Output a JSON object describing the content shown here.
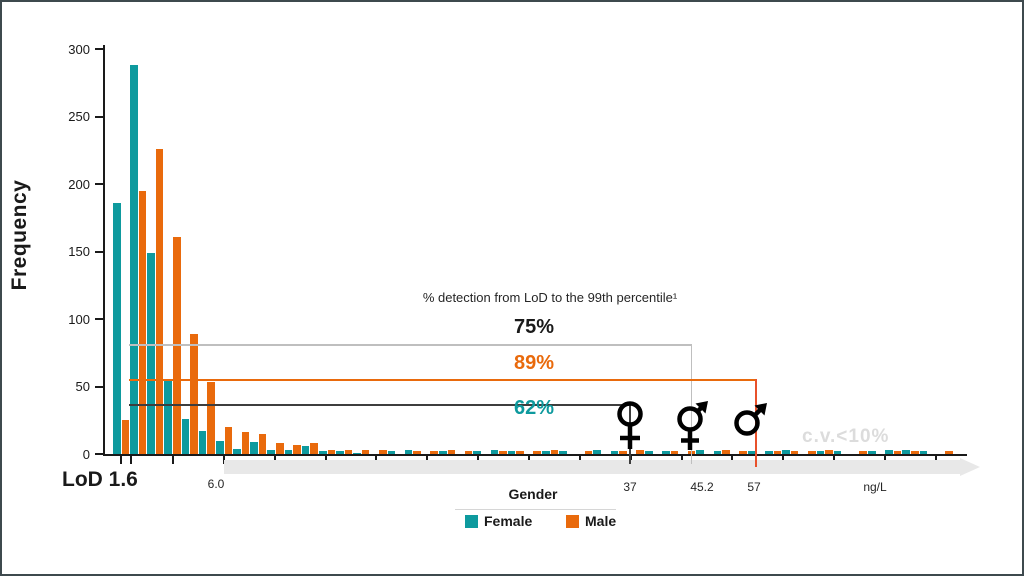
{
  "colors": {
    "female": "#0e9a9e",
    "male": "#e96a0c",
    "line_75": "#bfbfbf",
    "line_62": "#3d3d3d",
    "line_57_vertical": "#e8512b",
    "cv_text": "#dcdcdc",
    "band": "#e8e8e8",
    "axis": "#1a1a1a"
  },
  "chart_data": {
    "type": "bar",
    "title": "",
    "ylabel": "Frequency",
    "xlabel_unit": "ng/L",
    "ylim": [
      0,
      300
    ],
    "yticks": [
      0,
      50,
      100,
      150,
      200,
      250,
      300
    ],
    "grid": false,
    "legend_position": "bottom",
    "x_axis_labels": [
      "LoD 1.6",
      "6.0",
      "37",
      "45.2",
      "57",
      "ng/L"
    ],
    "series": [
      {
        "name": "Female",
        "color": "#0e9a9e",
        "values": [
          186,
          288,
          149,
          54,
          26,
          17,
          10,
          4,
          9,
          3,
          3,
          6,
          2,
          2,
          1,
          0,
          2,
          3,
          0,
          2,
          0,
          2,
          3,
          2,
          0,
          2,
          2,
          0,
          3,
          2,
          0,
          2,
          2,
          0,
          3,
          2,
          0,
          2,
          2,
          3,
          0,
          2,
          2,
          0,
          2,
          3,
          3,
          2,
          0
        ]
      },
      {
        "name": "Male",
        "color": "#e96a0c",
        "values": [
          25,
          195,
          226,
          161,
          89,
          53,
          20,
          16,
          15,
          8,
          7,
          8,
          3,
          3,
          3,
          3,
          0,
          2,
          2,
          3,
          2,
          0,
          2,
          2,
          2,
          3,
          0,
          2,
          0,
          2,
          3,
          0,
          2,
          2,
          0,
          3,
          2,
          0,
          2,
          2,
          2,
          3,
          0,
          2,
          0,
          2,
          2,
          0,
          2
        ]
      }
    ],
    "annotations": {
      "header": "% detection from LoD to the 99th percentile¹",
      "entries": [
        {
          "label": "75%",
          "group": "combined",
          "x_value": "45.2",
          "text_color": "#1a1a1a",
          "line_color": "#bfbfbf"
        },
        {
          "label": "89%",
          "group": "male",
          "x_value": "57",
          "text_color": "#e96a0c",
          "line_color": "#e96a0c"
        },
        {
          "label": "62%",
          "group": "female",
          "x_value": "37",
          "text_color": "#0e9a9e",
          "line_color": "#3d3d3d"
        }
      ],
      "cv_note": "c.v.<10%",
      "lod_label": "LoD 1.6",
      "x_marks": {
        "six": "6.0",
        "p37": "37",
        "p452": "45.2",
        "p57": "57",
        "unit": "ng/L"
      }
    }
  },
  "legend": {
    "title": "Gender",
    "items": [
      {
        "label": "Female",
        "color": "#0e9a9e"
      },
      {
        "label": "Male",
        "color": "#e96a0c"
      }
    ]
  }
}
